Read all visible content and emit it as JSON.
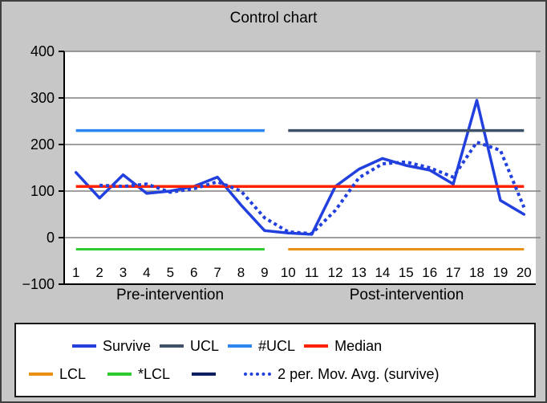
{
  "title": "Control chart",
  "colors": {
    "background": "#c7c7c7",
    "plot_bg": "#ffffff",
    "gridline": "#808080",
    "axis": "#000000",
    "survive": "#2240dd",
    "moving_avg": "#2240dd",
    "ucl": "#3e5169",
    "hash_ucl": "#2e86f0",
    "median": "#ff2200",
    "lcl": "#e89112",
    "star_lcl": "#2fca2f",
    "navy": "#0d1e5e"
  },
  "axes": {
    "y_tick_labels": [
      "400",
      "300",
      "200",
      "100",
      "0",
      "−100"
    ],
    "x_labels": [
      "1",
      "2",
      "3",
      "4",
      "5",
      "6",
      "7",
      "8",
      "9",
      "10",
      "11",
      "12",
      "13",
      "14",
      "15",
      "16",
      "17",
      "18",
      "19",
      "20"
    ],
    "pre_section_label": "Pre-intervention",
    "post_section_label": "Post-intervention"
  },
  "chart_data": {
    "type": "line",
    "title": "Control chart",
    "xlabel_sections": [
      "Pre-intervention (1-9)",
      "Post-intervention (10-20)"
    ],
    "ylim": [
      -100,
      400
    ],
    "y_ticks": [
      400,
      300,
      200,
      100,
      0,
      -100
    ],
    "x": [
      1,
      2,
      3,
      4,
      5,
      6,
      7,
      8,
      9,
      10,
      11,
      12,
      13,
      14,
      15,
      16,
      17,
      18,
      19,
      20
    ],
    "grid": true,
    "legend_position": "bottom",
    "series": [
      {
        "name": "Survive",
        "type": "line",
        "color_key": "survive",
        "width": 3.5,
        "x_start": 1,
        "values": [
          140,
          85,
          135,
          95,
          100,
          110,
          130,
          70,
          15,
          10,
          7,
          110,
          147,
          170,
          155,
          145,
          115,
          295,
          80,
          50
        ]
      },
      {
        "name": "UCL",
        "type": "const",
        "color_key": "ucl",
        "width": 3.5,
        "value": 230,
        "span": [
          10,
          20
        ]
      },
      {
        "name": "#UCL",
        "type": "const",
        "color_key": "hash_ucl",
        "width": 3.5,
        "value": 230,
        "span": [
          1,
          9
        ]
      },
      {
        "name": "Median",
        "type": "const",
        "color_key": "median",
        "width": 3.5,
        "value": 110,
        "span": [
          1,
          20
        ]
      },
      {
        "name": "LCL",
        "type": "const",
        "color_key": "lcl",
        "width": 3,
        "value": -25,
        "span": [
          10,
          20
        ]
      },
      {
        "name": "*LCL",
        "type": "const",
        "color_key": "star_lcl",
        "width": 3,
        "value": -25,
        "span": [
          1,
          9
        ]
      },
      {
        "name": "2 per. Mov. Avg. (survive)",
        "type": "line",
        "dashed": true,
        "color_key": "moving_avg",
        "width": 4,
        "x_start": 2,
        "values": [
          112.5,
          110,
          115,
          97.5,
          105,
          120,
          100,
          42.5,
          12.5,
          8.5,
          58.5,
          128.5,
          158.5,
          162.5,
          150,
          130,
          205,
          187.5,
          65
        ]
      }
    ]
  },
  "legend": {
    "rows": [
      [
        {
          "label": "Survive",
          "swatch": "survive"
        },
        {
          "label": "UCL",
          "swatch": "ucl"
        },
        {
          "label": "#UCL",
          "swatch": "hash_ucl"
        },
        {
          "label": "Median",
          "swatch": "median"
        }
      ],
      [
        {
          "label": "LCL",
          "swatch": "lcl"
        },
        {
          "label": "*LCL",
          "swatch": "star_lcl"
        },
        {
          "label": "",
          "swatch": "navy"
        },
        {
          "label": "2 per. Mov. Avg. (survive)",
          "swatch": "moving_avg"
        }
      ]
    ]
  }
}
